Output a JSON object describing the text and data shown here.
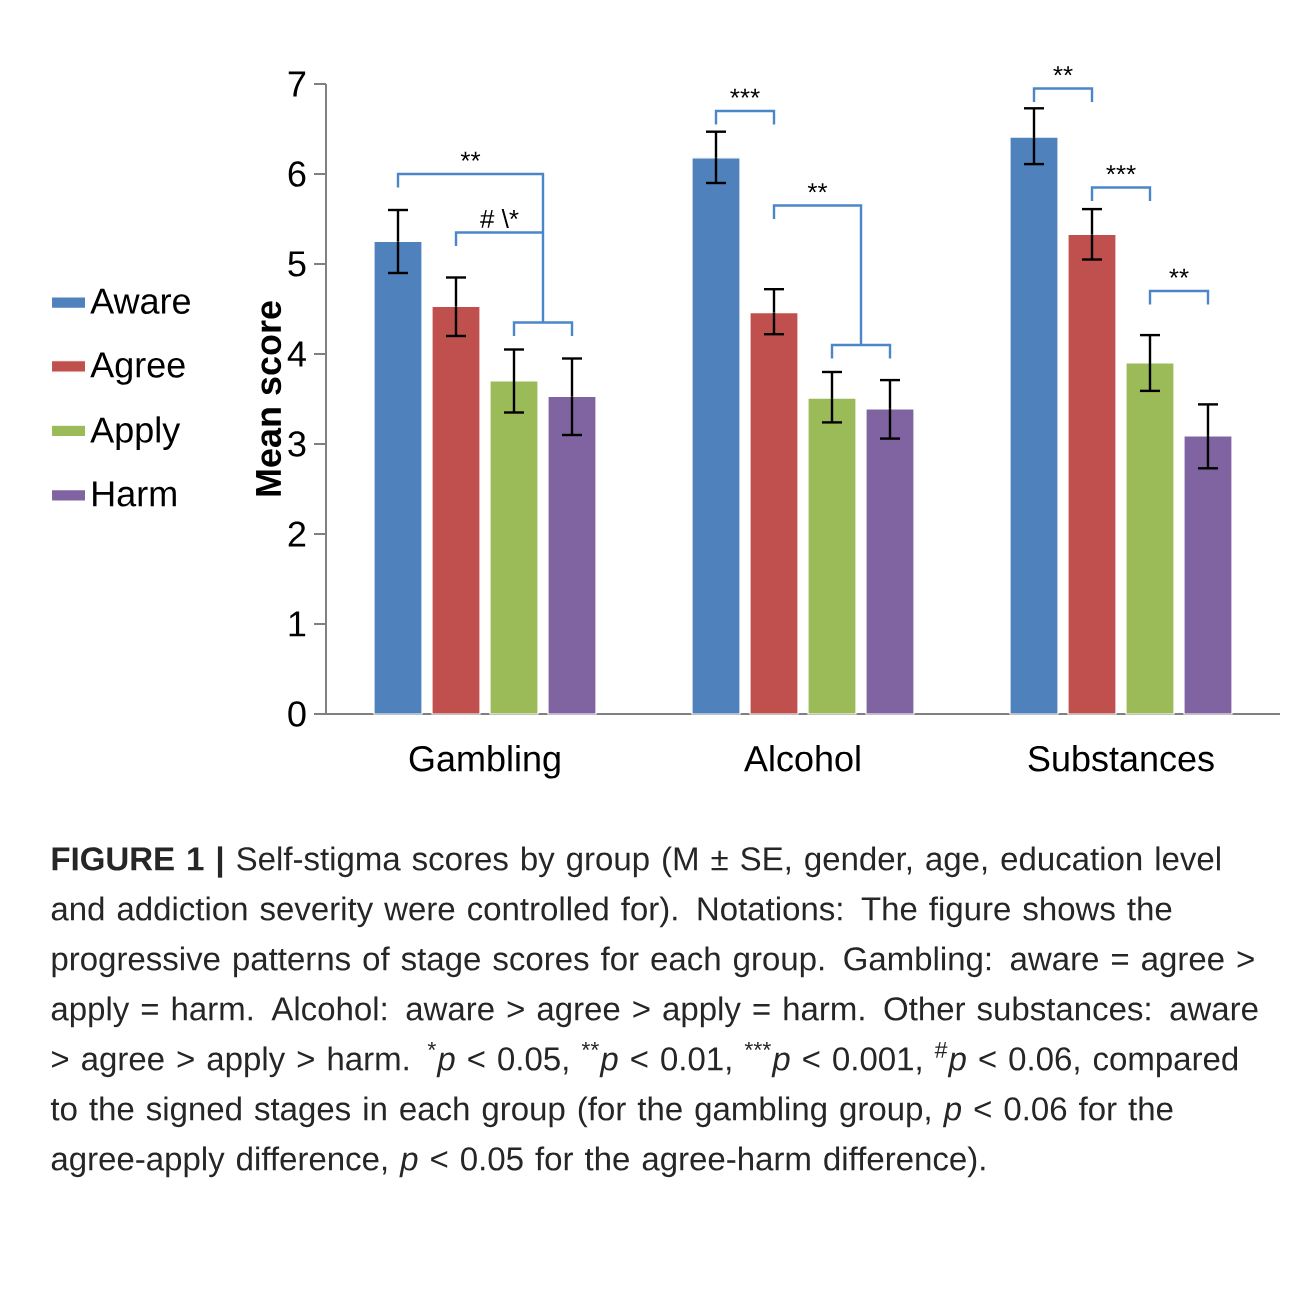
{
  "chart_data": {
    "type": "bar",
    "ylabel": "Mean score",
    "categories": [
      "Gambling",
      "Alcohol",
      "Substances"
    ],
    "series": [
      {
        "name": "Aware",
        "color": "#4f81bd",
        "values": [
          5.25,
          6.18,
          6.41
        ],
        "errors": [
          [
            4.9,
            5.6
          ],
          [
            5.9,
            6.47
          ],
          [
            6.11,
            6.73
          ]
        ]
      },
      {
        "name": "Agree",
        "color": "#c0504d",
        "values": [
          4.53,
          4.46,
          5.33
        ],
        "errors": [
          [
            4.2,
            4.85
          ],
          [
            4.22,
            4.72
          ],
          [
            5.05,
            5.61
          ]
        ]
      },
      {
        "name": "Apply",
        "color": "#9bbb59",
        "values": [
          3.7,
          3.51,
          3.9
        ],
        "errors": [
          [
            3.35,
            4.05
          ],
          [
            3.24,
            3.8
          ],
          [
            3.59,
            4.21
          ]
        ]
      },
      {
        "name": "Harm",
        "color": "#8064a2",
        "values": [
          3.53,
          3.39,
          3.09
        ],
        "errors": [
          [
            3.1,
            3.95
          ],
          [
            3.06,
            3.71
          ],
          [
            2.73,
            3.44
          ]
        ]
      }
    ],
    "ylim": [
      0,
      7
    ],
    "yticks": [
      0,
      1,
      2,
      3,
      4,
      5,
      6,
      7
    ],
    "grid": false,
    "legend": "left",
    "annotations": [
      "**",
      "# \\*",
      "***",
      "**",
      "**",
      "***",
      "**",
      "**FIGURE 1 |** Self-stigma scores by group (M ± SE, gender, age, education level and addiction severity were controlled for). Notations: The figure shows the progressive patterns of stage scores for each group. Gambling: aware = agree > apply = harm. Alcohol: aware > agree > apply = harm. Other substances: aware > agree > apply > harm. $^{*}$*p* < 0.05, $^{**}$*p* < 0.01, $^{***}$*p* < 0.001, $^{#}$*p* < 0.06, compared to the signed stages in each group (for the gambling group, *p* < 0.06 for the agree-apply difference, *p* < 0.05 for the agree-harm difference)."
    ]
  }
}
